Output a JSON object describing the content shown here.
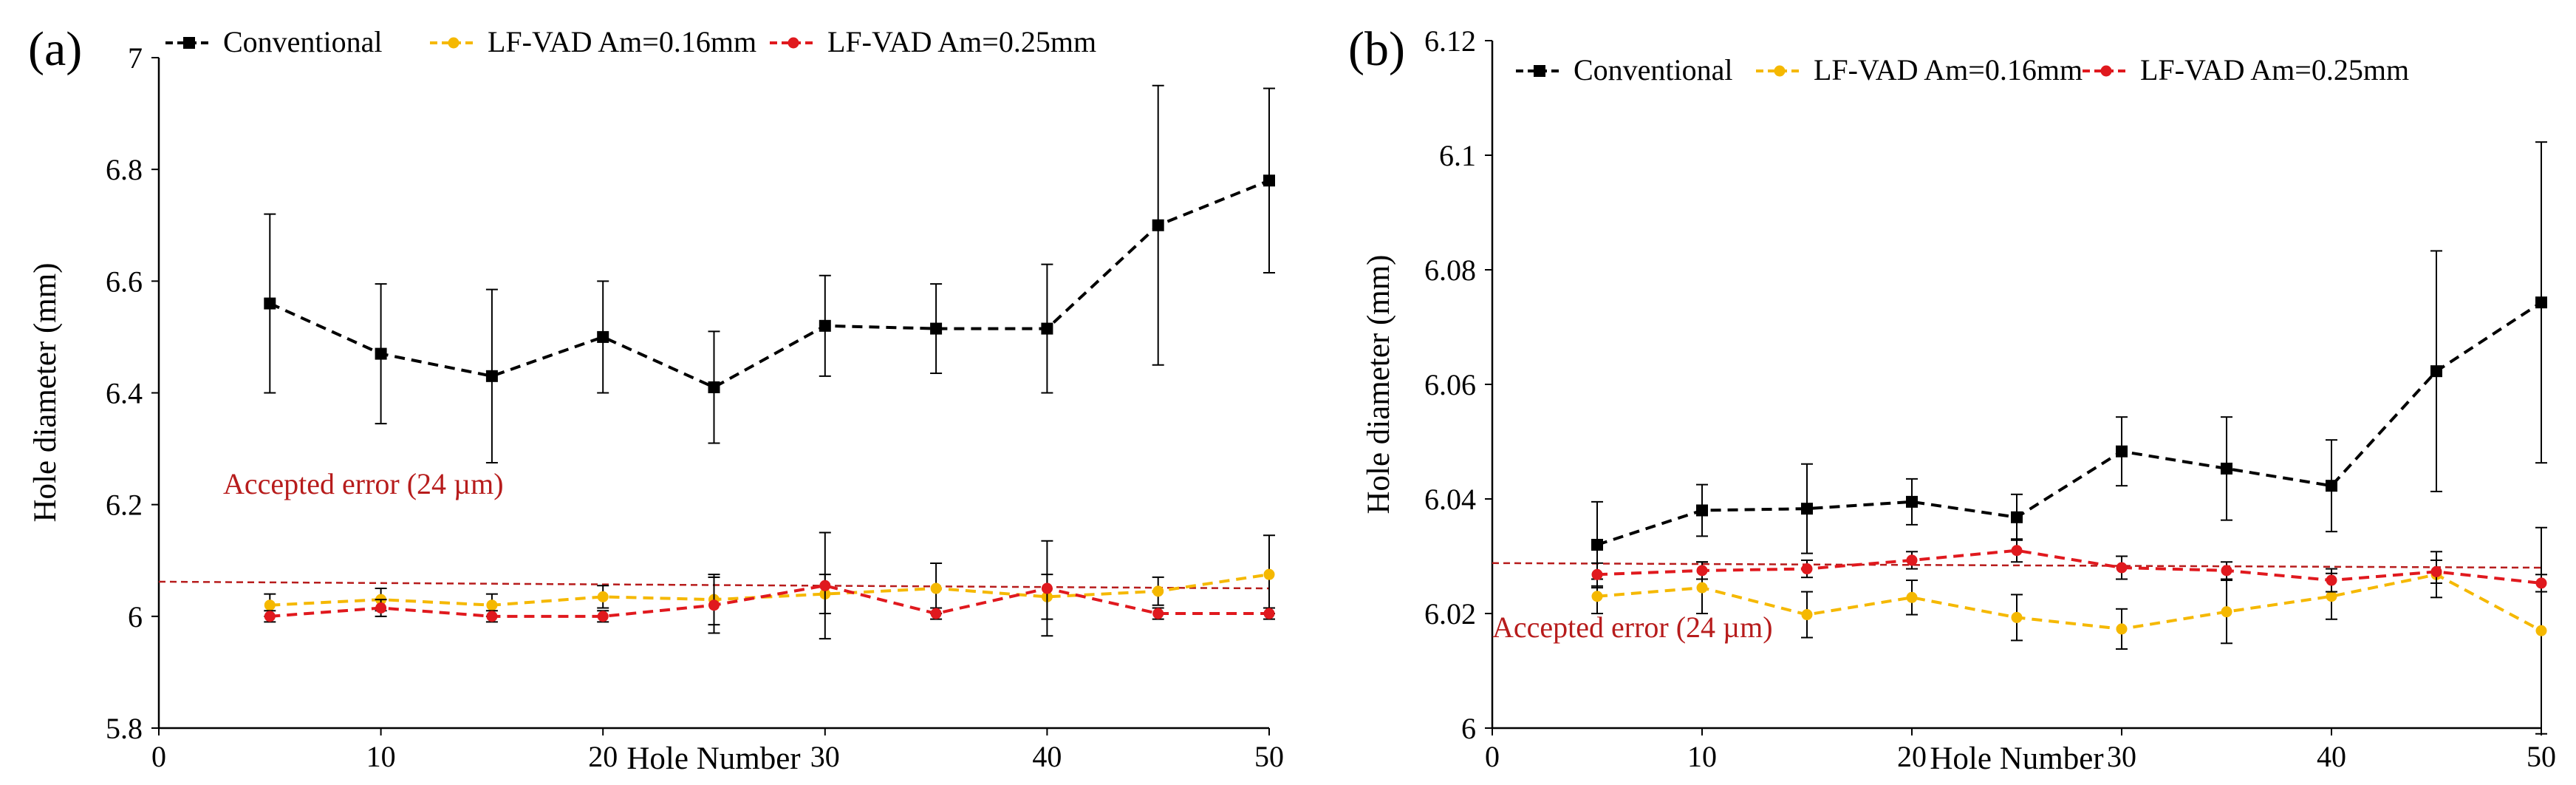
{
  "chart_data": [
    {
      "type": "line",
      "panel_label": "(a)",
      "title": "",
      "xlabel": "Hole Number",
      "ylabel": "Hole diameter (mm)",
      "xlim": [
        0,
        50
      ],
      "ylim": [
        5.8,
        7
      ],
      "xticks": [
        0,
        10,
        20,
        30,
        40,
        50
      ],
      "yticks": [
        5.8,
        6,
        6.2,
        6.4,
        6.6,
        6.8,
        7
      ],
      "ytick_labels": [
        "5.8",
        "6",
        "6.2",
        "6.4",
        "6.6",
        "6.8",
        "7"
      ],
      "x": [
        5,
        10,
        15,
        20,
        25,
        30,
        35,
        40,
        45,
        50
      ],
      "series": [
        {
          "name": "Conventional",
          "color": "#000000",
          "marker": "square",
          "values": [
            6.56,
            6.47,
            6.43,
            6.5,
            6.41,
            6.52,
            6.515,
            6.515,
            6.7,
            6.78
          ],
          "errors": [
            0.16,
            0.125,
            0.155,
            0.1,
            0.1,
            0.09,
            0.08,
            0.115,
            0.25,
            0.165
          ]
        },
        {
          "name": "LF-VAD Am=0.16mm",
          "color": "#F5B800",
          "marker": "circle",
          "values": [
            6.02,
            6.03,
            6.02,
            6.035,
            6.03,
            6.04,
            6.05,
            6.035,
            6.045,
            6.075
          ],
          "errors": [
            0.02,
            0.02,
            0.02,
            0.02,
            0.045,
            0.035,
            0.045,
            0.04,
            0.025,
            0.07
          ]
        },
        {
          "name": "LF-VAD Am=0.25mm",
          "color": "#E0191E",
          "marker": "circle",
          "values": [
            6.0,
            6.015,
            6.0,
            6.0,
            6.02,
            6.055,
            6.005,
            6.05,
            6.005,
            6.005
          ],
          "errors": [
            0.01,
            0.015,
            0.01,
            0.01,
            0.05,
            0.095,
            0.01,
            0.085,
            0.01,
            0.01
          ]
        }
      ],
      "reference_line": {
        "label": "Accepted error (24 µm)",
        "y_start": 6.062,
        "y_end": 6.05,
        "color": "#B71C1C"
      },
      "legend_position": "top"
    },
    {
      "type": "line",
      "panel_label": "(b)",
      "title": "",
      "xlabel": "Hole Number",
      "ylabel": "Hole diameter (mm)",
      "xlim": [
        0,
        50
      ],
      "ylim": [
        6,
        6.12
      ],
      "xticks": [
        0,
        10,
        20,
        30,
        40,
        50
      ],
      "yticks": [
        6,
        6.02,
        6.04,
        6.06,
        6.08,
        6.1,
        6.12
      ],
      "ytick_labels": [
        "6",
        "6.02",
        "6.04",
        "6.06",
        "6.08",
        "6.1",
        "6.12"
      ],
      "x": [
        5,
        10,
        15,
        20,
        25,
        30,
        35,
        40,
        45,
        50
      ],
      "series": [
        {
          "name": "Conventional",
          "color": "#000000",
          "marker": "square",
          "values": [
            6.032,
            6.038,
            6.0383,
            6.0395,
            6.0368,
            6.0483,
            6.0453,
            6.0423,
            6.0623,
            6.0743
          ],
          "errors": [
            0.0075,
            0.0045,
            0.0078,
            0.004,
            0.004,
            0.006,
            0.009,
            0.008,
            0.021,
            0.028
          ]
        },
        {
          "name": "LF-VAD Am=0.16mm",
          "color": "#F5B800",
          "marker": "circle",
          "values": [
            6.023,
            6.0245,
            6.0198,
            6.0228,
            6.0193,
            6.0173,
            6.0203,
            6.023,
            6.0268,
            6.017
          ],
          "errors": [
            0.003,
            0.0045,
            0.004,
            0.003,
            0.004,
            0.0035,
            0.0055,
            0.004,
            0.004,
            0.018
          ]
        },
        {
          "name": "LF-VAD Am=0.25mm",
          "color": "#E0191E",
          "marker": "circle",
          "values": [
            6.0268,
            6.0275,
            6.0278,
            6.0293,
            6.031,
            6.028,
            6.0275,
            6.0258,
            6.0273,
            6.0253
          ],
          "errors": [
            0.002,
            0.0015,
            0.0015,
            0.0015,
            0.002,
            0.002,
            0.0015,
            0.002,
            0.002,
            0.0015
          ]
        }
      ],
      "reference_line": {
        "label": "Accepted error (24 µm)",
        "y_start": 6.0288,
        "y_end": 6.028,
        "color": "#B71C1C"
      },
      "legend_position": "top"
    }
  ]
}
